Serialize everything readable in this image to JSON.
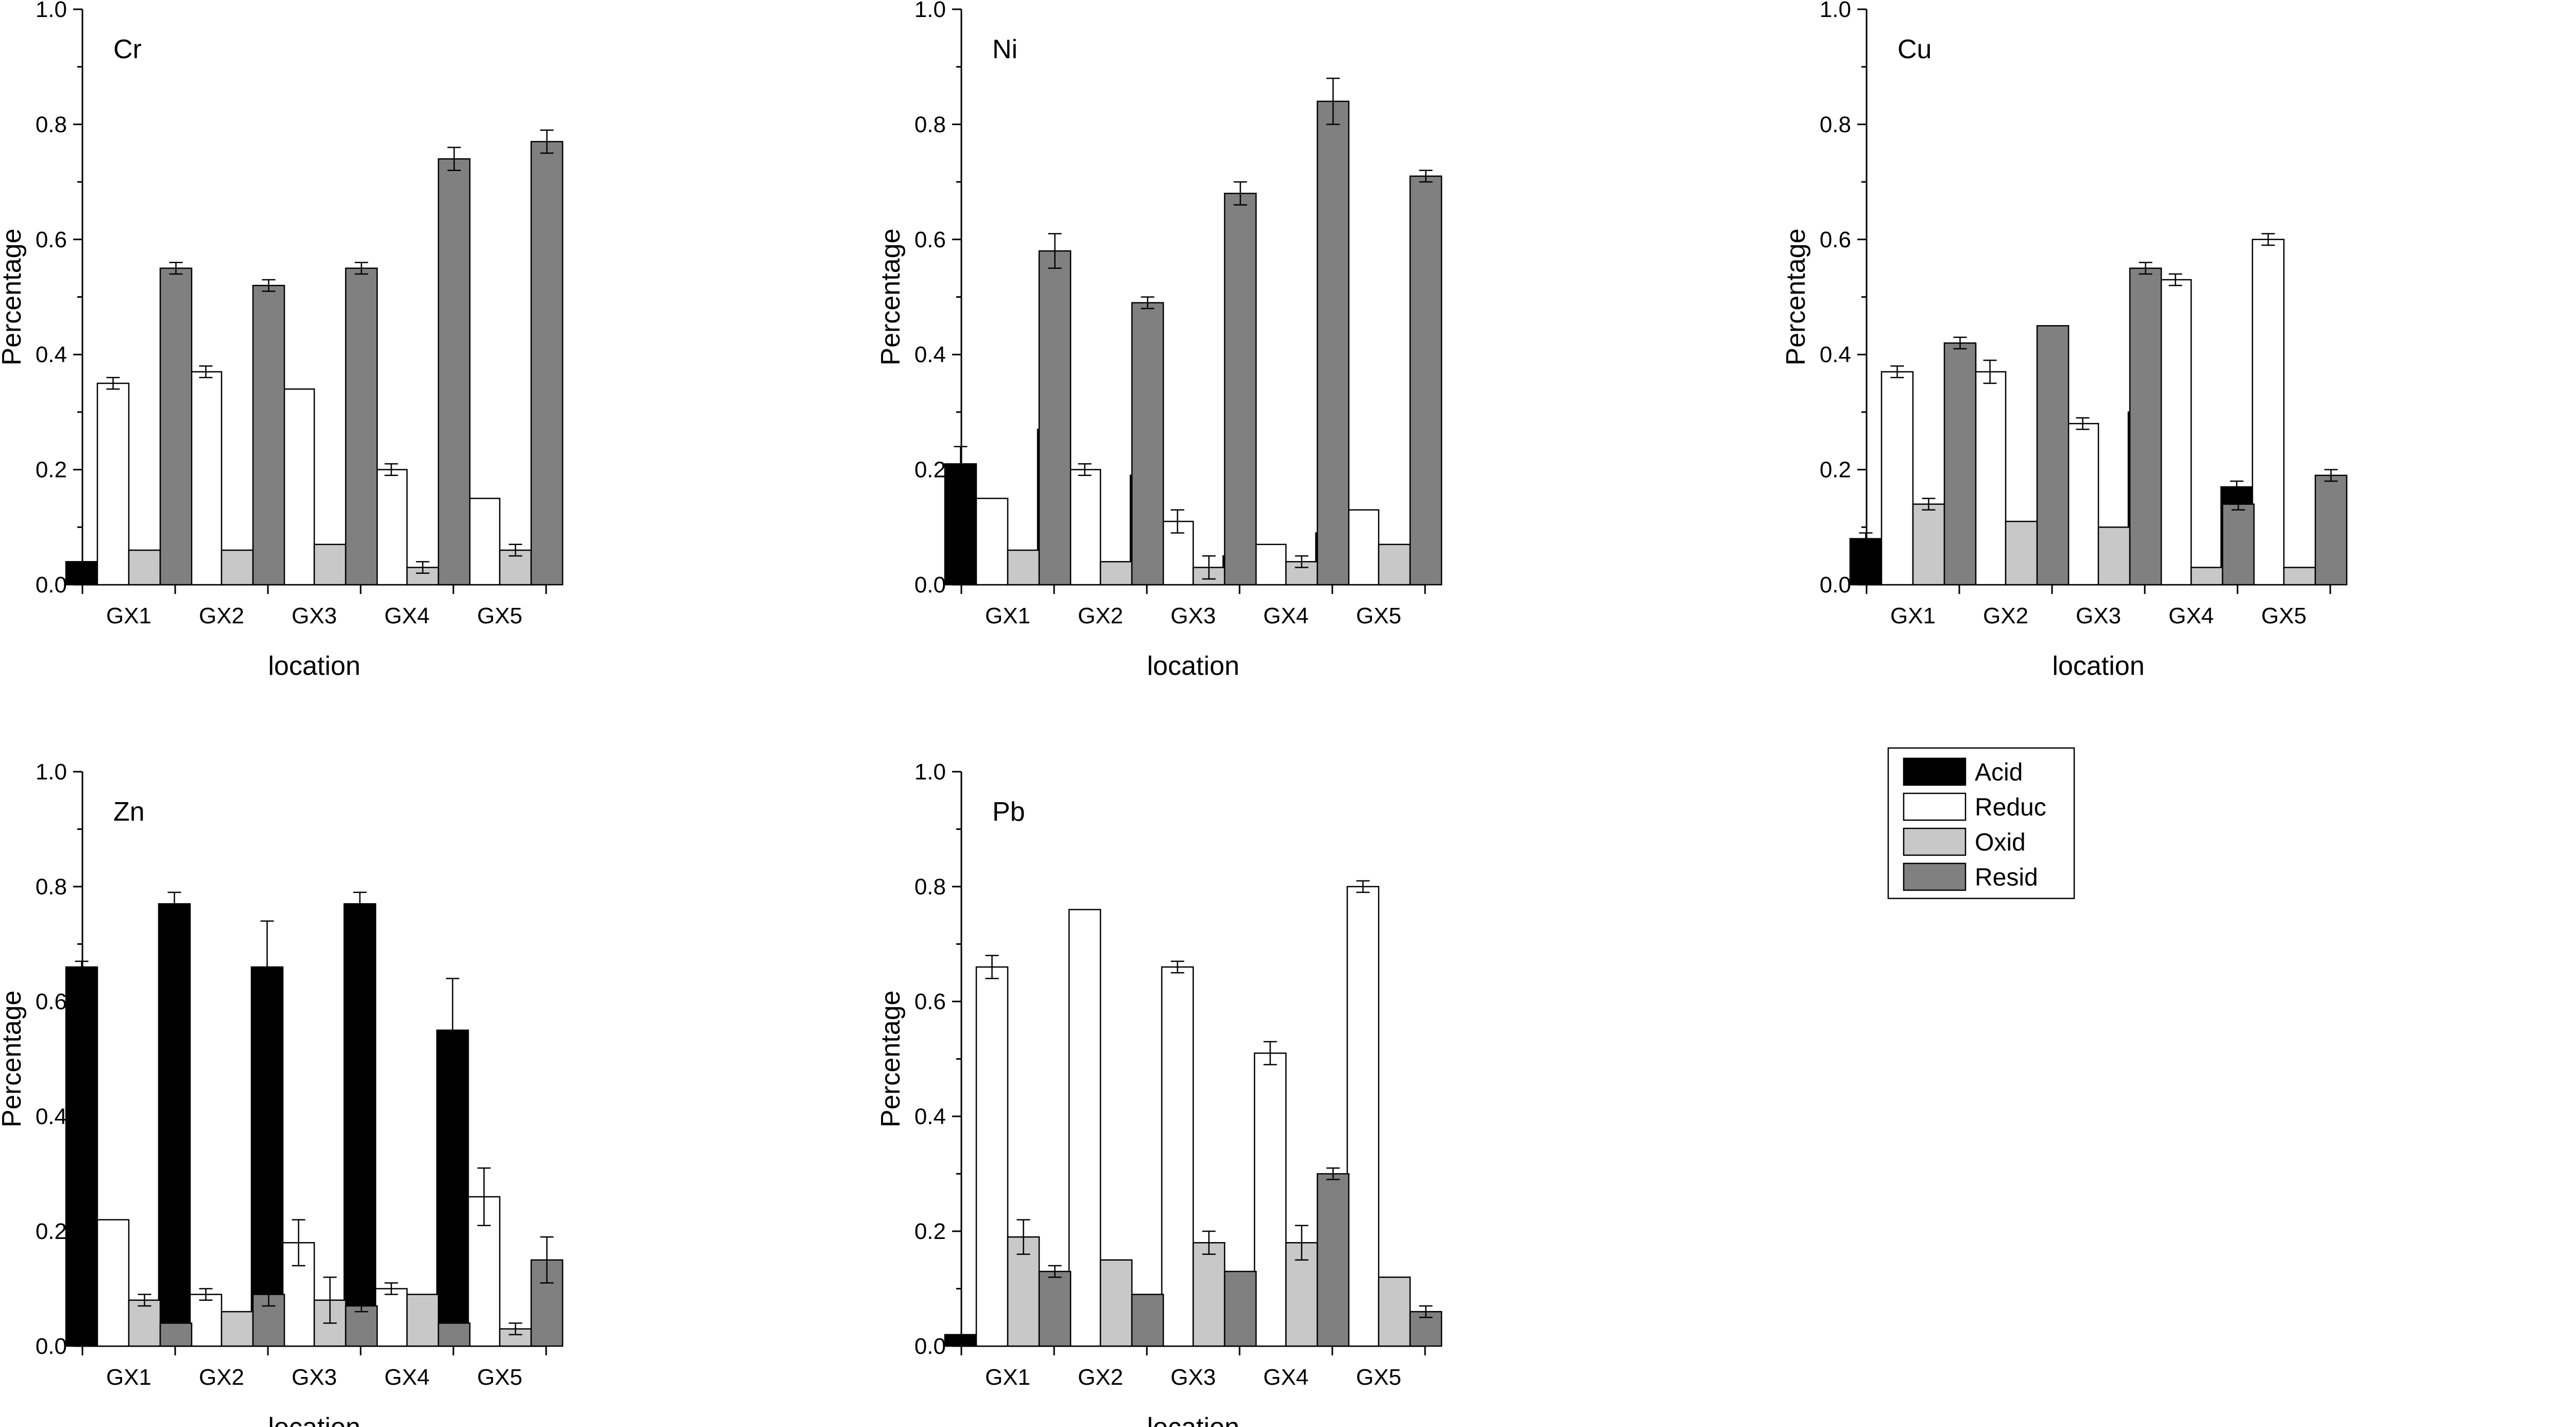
{
  "figure": {
    "legend": {
      "placement": "right of bottom row",
      "entries": [
        {
          "name": "Acid",
          "color": "#000000"
        },
        {
          "name": "Reduc",
          "color": "#ffffff"
        },
        {
          "name": "Oxid",
          "color": "#c8c8c8"
        },
        {
          "name": "Resid",
          "color": "#808080"
        }
      ]
    }
  },
  "chart_data": [
    {
      "type": "bar",
      "title": "Cr",
      "xlabel": "location",
      "ylabel": "Percentage",
      "ylim": [
        0,
        1.0
      ],
      "yticks": [
        "0.0",
        "0.2",
        "0.4",
        "0.6",
        "0.8",
        "1.0"
      ],
      "categories": [
        "GX1",
        "GX2",
        "GX3",
        "GX4",
        "GX5"
      ],
      "grid": false,
      "series": [
        {
          "name": "Acid",
          "values": [
            0.04,
            0.06,
            0.04,
            0.03,
            0.01
          ],
          "errors": [
            0,
            0,
            0.01,
            0.02,
            0.01
          ]
        },
        {
          "name": "Reduc",
          "values": [
            0.35,
            0.37,
            0.34,
            0.2,
            0.15
          ],
          "errors": [
            0.01,
            0.01,
            0,
            0.01,
            0
          ]
        },
        {
          "name": "Oxid",
          "values": [
            0.06,
            0.06,
            0.07,
            0.03,
            0.06
          ],
          "errors": [
            0,
            0,
            0,
            0.01,
            0.01
          ]
        },
        {
          "name": "Resid",
          "values": [
            0.55,
            0.52,
            0.55,
            0.74,
            0.77
          ],
          "errors": [
            0.01,
            0.01,
            0.01,
            0.02,
            0.02
          ]
        }
      ]
    },
    {
      "type": "bar",
      "title": "Ni",
      "xlabel": "location",
      "ylabel": "Percentage",
      "ylim": [
        0,
        1.0
      ],
      "yticks": [
        "0.0",
        "0.2",
        "0.4",
        "0.6",
        "0.8",
        "1.0"
      ],
      "categories": [
        "GX1",
        "GX2",
        "GX3",
        "GX4",
        "GX5"
      ],
      "grid": false,
      "series": [
        {
          "name": "Acid",
          "values": [
            0.21,
            0.27,
            0.19,
            0.05,
            0.09
          ],
          "errors": [
            0.03,
            0.01,
            0.01,
            0.03,
            0
          ]
        },
        {
          "name": "Reduc",
          "values": [
            0.15,
            0.2,
            0.11,
            0.07,
            0.13
          ],
          "errors": [
            0,
            0.01,
            0.02,
            0,
            0
          ]
        },
        {
          "name": "Oxid",
          "values": [
            0.06,
            0.04,
            0.03,
            0.04,
            0.07
          ],
          "errors": [
            0,
            0,
            0.02,
            0.01,
            0
          ]
        },
        {
          "name": "Resid",
          "values": [
            0.58,
            0.49,
            0.68,
            0.84,
            0.71
          ],
          "errors": [
            0.03,
            0.01,
            0.02,
            0.04,
            0.01
          ]
        }
      ]
    },
    {
      "type": "bar",
      "title": "Cu",
      "xlabel": "location",
      "ylabel": "Percentage",
      "ylim": [
        0,
        1.0
      ],
      "yticks": [
        "0.0",
        "0.2",
        "0.4",
        "0.6",
        "0.8",
        "1.0"
      ],
      "categories": [
        "GX1",
        "GX2",
        "GX3",
        "GX4",
        "GX5"
      ],
      "grid": false,
      "series": [
        {
          "name": "Acid",
          "values": [
            0.08,
            0.08,
            0.07,
            0.3,
            0.17
          ],
          "errors": [
            0.01,
            0.01,
            0,
            0.01,
            0.01
          ]
        },
        {
          "name": "Reduc",
          "values": [
            0.37,
            0.37,
            0.28,
            0.53,
            0.6
          ],
          "errors": [
            0.01,
            0.02,
            0.01,
            0.01,
            0.01
          ]
        },
        {
          "name": "Oxid",
          "values": [
            0.14,
            0.11,
            0.1,
            0.03,
            0.03
          ],
          "errors": [
            0.01,
            0,
            0,
            0,
            0
          ]
        },
        {
          "name": "Resid",
          "values": [
            0.42,
            0.45,
            0.55,
            0.14,
            0.19
          ],
          "errors": [
            0.01,
            0,
            0.01,
            0.01,
            0.01
          ]
        }
      ]
    },
    {
      "type": "bar",
      "title": "Zn",
      "xlabel": "location",
      "ylabel": "Percentage",
      "ylim": [
        0,
        1.0
      ],
      "yticks": [
        "0.0",
        "0.2",
        "0.4",
        "0.6",
        "0.8",
        "1.0"
      ],
      "categories": [
        "GX1",
        "GX2",
        "GX3",
        "GX4",
        "GX5"
      ],
      "grid": false,
      "series": [
        {
          "name": "Acid",
          "values": [
            0.66,
            0.77,
            0.66,
            0.77,
            0.55
          ],
          "errors": [
            0.01,
            0.02,
            0.08,
            0.02,
            0.09
          ]
        },
        {
          "name": "Reduc",
          "values": [
            0.22,
            0.09,
            0.18,
            0.1,
            0.26
          ],
          "errors": [
            0,
            0.01,
            0.04,
            0.01,
            0.05
          ]
        },
        {
          "name": "Oxid",
          "values": [
            0.08,
            0.06,
            0.08,
            0.09,
            0.03
          ],
          "errors": [
            0.01,
            0,
            0.04,
            0,
            0.01
          ]
        },
        {
          "name": "Resid",
          "values": [
            0.04,
            0.09,
            0.07,
            0.04,
            0.15
          ],
          "errors": [
            0,
            0.02,
            0.01,
            0,
            0.04
          ]
        }
      ]
    },
    {
      "type": "bar",
      "title": "Pb",
      "xlabel": "location",
      "ylabel": "Percentage",
      "ylim": [
        0,
        1.0
      ],
      "yticks": [
        "0.0",
        "0.2",
        "0.4",
        "0.6",
        "0.8",
        "1.0"
      ],
      "categories": [
        "GX1",
        "GX2",
        "GX3",
        "GX4",
        "GX5"
      ],
      "grid": false,
      "series": [
        {
          "name": "Acid",
          "values": [
            0.02,
            0.01,
            0.03,
            0.02,
            0.03
          ],
          "errors": [
            0,
            0,
            0.01,
            0,
            0
          ]
        },
        {
          "name": "Reduc",
          "values": [
            0.66,
            0.76,
            0.66,
            0.51,
            0.8
          ],
          "errors": [
            0.02,
            0,
            0.01,
            0.02,
            0.01
          ]
        },
        {
          "name": "Oxid",
          "values": [
            0.19,
            0.15,
            0.18,
            0.18,
            0.12
          ],
          "errors": [
            0.03,
            0,
            0.02,
            0.03,
            0
          ]
        },
        {
          "name": "Resid",
          "values": [
            0.13,
            0.09,
            0.13,
            0.3,
            0.06
          ],
          "errors": [
            0.01,
            0,
            0,
            0.01,
            0.01
          ]
        }
      ]
    }
  ]
}
